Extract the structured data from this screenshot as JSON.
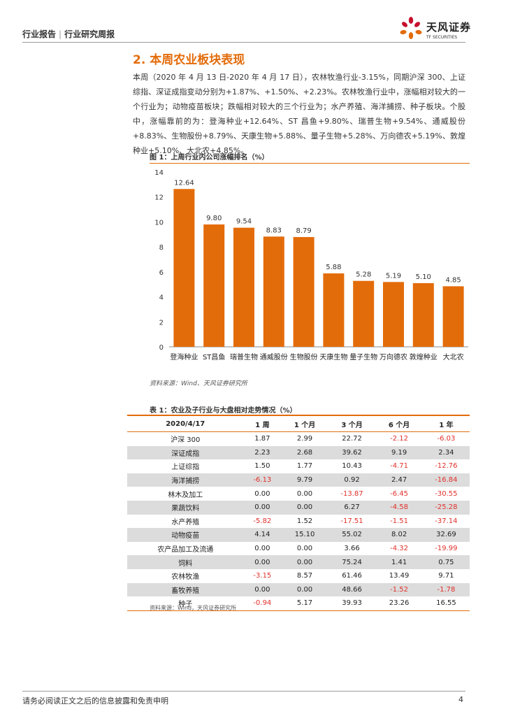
{
  "header": {
    "left": "行业报告",
    "divider": "|",
    "right": "行业研究周报",
    "logo_name": "天风证券",
    "logo_sub": "TF SECURITIES"
  },
  "section_title": "2. 本周农业板块表现",
  "paragraph": "本周（2020 年 4 月 13 日-2020 年 4 月 17 日），农林牧渔行业-3.15%，同期沪深 300、上证综指、深证成指变动分别为+1.87%、+1.50%、+2.23%。农林牧渔行业中，涨幅相对较大的一个行业为；动物疫苗板块；跌幅相对较大的三个行业为；水产养殖、海洋捕捞、种子板块。个股中，涨幅靠前的为：登海种业+12.64%、ST 昌鱼+9.80%、瑞普生物+9.54%、通威股份+8.83%、生物股份+8.79%、天康生物+5.88%、量子生物+5.28%、万向德农+5.19%、敦煌种业+5.10%、大北农+4.85%。",
  "figure": {
    "title": "图 1：上周行业内公司涨幅排名（%）",
    "source": "资料来源：Wind、天风证券研究所"
  },
  "chart_data": {
    "type": "bar",
    "title": "上周行业内公司涨幅排名（%）",
    "categories": [
      "登海种业",
      "ST昌鱼",
      "瑞普生物",
      "通威股份",
      "生物股份",
      "天康生物",
      "量子生物",
      "万向德农",
      "敦煌种业",
      "大北农"
    ],
    "values": [
      12.64,
      9.8,
      9.54,
      8.83,
      8.79,
      5.88,
      5.28,
      5.19,
      5.1,
      4.85
    ],
    "value_labels": [
      "12.64",
      "9.80",
      "9.54",
      "8.83",
      "8.79",
      "5.88",
      "5.28",
      "5.19",
      "5.10",
      "4.85"
    ],
    "yticks": [
      "0",
      "2",
      "4",
      "6",
      "8",
      "10",
      "12",
      "14"
    ],
    "ylim": [
      0,
      14
    ],
    "bar_color": "#e36c0a",
    "xlabel": "",
    "ylabel": ""
  },
  "table": {
    "title": "表 1：农业及子行业与大盘相对走势情况（%）",
    "headers": [
      "2020/4/17",
      "1 周",
      "1 个月",
      "3 个月",
      "6 个月",
      "1 年"
    ],
    "rows": [
      [
        "沪深 300",
        "1.87",
        "2.99",
        "22.72",
        "-2.12",
        "-6.03"
      ],
      [
        "深证成指",
        "2.23",
        "2.68",
        "39.62",
        "9.19",
        "2.34"
      ],
      [
        "上证综指",
        "1.50",
        "1.77",
        "10.43",
        "-4.71",
        "-12.76"
      ],
      [
        "海洋捕捞",
        "-6.13",
        "9.79",
        "0.92",
        "2.47",
        "-16.84"
      ],
      [
        "林木及加工",
        "0.00",
        "0.00",
        "-13.87",
        "-6.45",
        "-30.55"
      ],
      [
        "果蔬饮料",
        "0.00",
        "0.00",
        "6.27",
        "-4.58",
        "-25.28"
      ],
      [
        "水产养殖",
        "-5.82",
        "1.52",
        "-17.51",
        "-1.51",
        "-37.14"
      ],
      [
        "动物疫苗",
        "4.14",
        "15.10",
        "55.02",
        "8.02",
        "32.69"
      ],
      [
        "农产品加工及流通",
        "0.00",
        "0.00",
        "3.66",
        "-4.32",
        "-19.99"
      ],
      [
        "饲料",
        "0.00",
        "0.00",
        "75.24",
        "1.41",
        "0.75"
      ],
      [
        "农林牧渔",
        "-3.15",
        "8.57",
        "61.46",
        "13.49",
        "9.71"
      ],
      [
        "畜牧养殖",
        "0.00",
        "0.00",
        "48.66",
        "-1.52",
        "-1.78"
      ],
      [
        "种子",
        "-0.94",
        "5.17",
        "39.93",
        "23.26",
        "16.55"
      ]
    ],
    "source": "资料来源：Wind，天风证券研究所"
  },
  "footer": {
    "text": "请务必阅读正文之后的信息披露和免责申明",
    "page": "4"
  },
  "colors": {
    "accent": "#e36c0a",
    "negative": "#e0302a",
    "row_shade": "#dcdcdc",
    "logo_red": "#c8102e"
  }
}
